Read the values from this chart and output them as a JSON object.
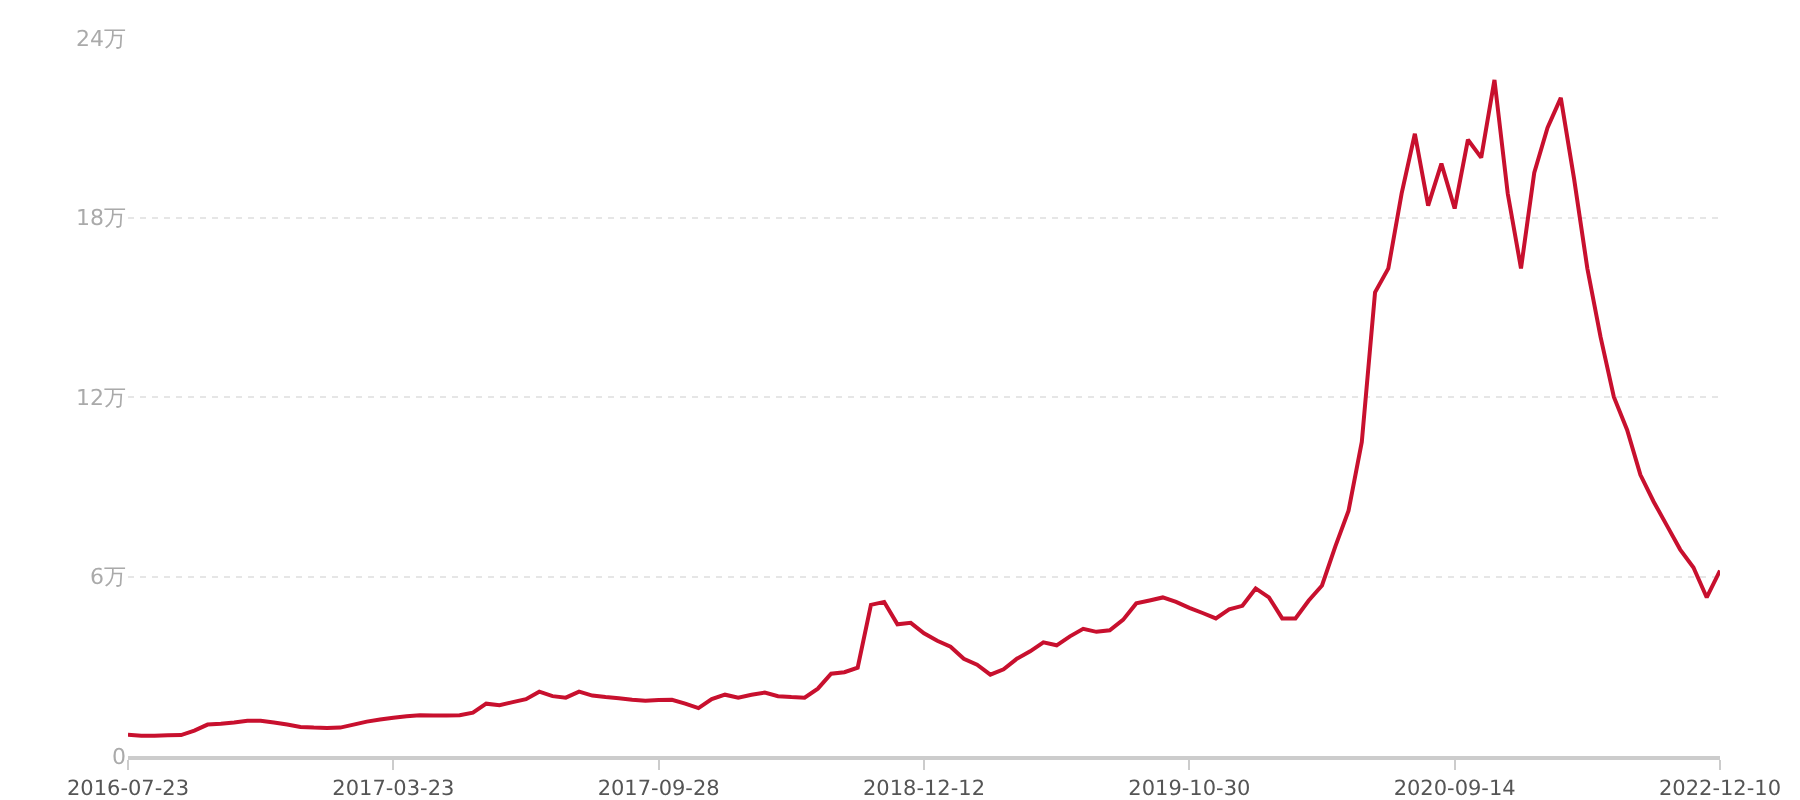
{
  "chart_data": {
    "type": "line",
    "categories": [
      "2016-07-23",
      null,
      null,
      null,
      null,
      null,
      null,
      null,
      null,
      null,
      null,
      null,
      null,
      null,
      null,
      null,
      null,
      null,
      null,
      null,
      "2017-03-23",
      null,
      null,
      null,
      null,
      null,
      null,
      null,
      null,
      null,
      null,
      null,
      null,
      null,
      null,
      null,
      null,
      null,
      null,
      null,
      "2017-09-28",
      null,
      null,
      null,
      null,
      null,
      null,
      null,
      null,
      null,
      null,
      null,
      null,
      null,
      null,
      null,
      null,
      null,
      null,
      null,
      "2018-12-12",
      null,
      null,
      null,
      null,
      null,
      null,
      null,
      null,
      null,
      null,
      null,
      null,
      null,
      null,
      null,
      null,
      null,
      null,
      null,
      "2019-10-30",
      null,
      null,
      null,
      null,
      null,
      null,
      null,
      null,
      null,
      null,
      null,
      null,
      null,
      null,
      null,
      null,
      null,
      null,
      null,
      "2020-09-14",
      null,
      null,
      null,
      null,
      null,
      null,
      null,
      null,
      null,
      null,
      null,
      null,
      null,
      null,
      null,
      null,
      null,
      null,
      null,
      "2022-12-10"
    ],
    "series": [
      {
        "color": "#c8102e",
        "values": [
          0.71,
          0.68,
          0.68,
          0.69,
          0.7,
          0.85,
          1.05,
          1.08,
          1.12,
          1.18,
          1.18,
          1.12,
          1.05,
          0.97,
          0.95,
          0.94,
          0.95,
          1.05,
          1.15,
          1.22,
          1.28,
          1.33,
          1.36,
          1.35,
          1.35,
          1.36,
          1.45,
          1.75,
          1.7,
          1.8,
          1.9,
          2.15,
          2.0,
          1.95,
          2.15,
          2.02,
          1.97,
          1.93,
          1.88,
          1.85,
          1.87,
          1.88,
          1.75,
          1.6,
          1.9,
          2.05,
          1.95,
          2.05,
          2.12,
          2.0,
          1.97,
          1.95,
          2.25,
          2.75,
          2.8,
          2.95,
          5.05,
          5.15,
          4.4,
          4.45,
          4.1,
          3.85,
          3.65,
          3.25,
          3.05,
          2.72,
          2.9,
          3.25,
          3.5,
          3.8,
          3.7,
          4.0,
          4.25,
          4.15,
          4.2,
          4.55,
          5.1,
          5.2,
          5.3,
          5.15,
          4.95,
          4.78,
          4.6,
          4.9,
          5.02,
          5.6,
          5.3,
          4.6,
          4.6,
          5.2,
          5.7,
          7.0,
          8.2,
          10.5,
          15.5,
          16.3,
          18.8,
          20.8,
          18.4,
          19.8,
          18.3,
          20.6,
          20.0,
          22.6,
          18.8,
          16.3,
          19.5,
          21.0,
          22.0,
          19.3,
          16.3,
          14.0,
          12.0,
          10.9,
          9.4,
          8.5,
          7.7,
          6.9,
          6.3,
          5.3,
          6.2
        ]
      }
    ],
    "ylim": [
      0,
      24
    ],
    "yticks": [
      0,
      {
        "value": 6,
        "label": "6万"
      },
      {
        "value": 12,
        "label": "12万"
      },
      {
        "value": 18,
        "label": "18万"
      },
      {
        "value": 24,
        "label": "24万"
      }
    ],
    "grid": "y",
    "marker": "none",
    "line_style": "solid"
  }
}
